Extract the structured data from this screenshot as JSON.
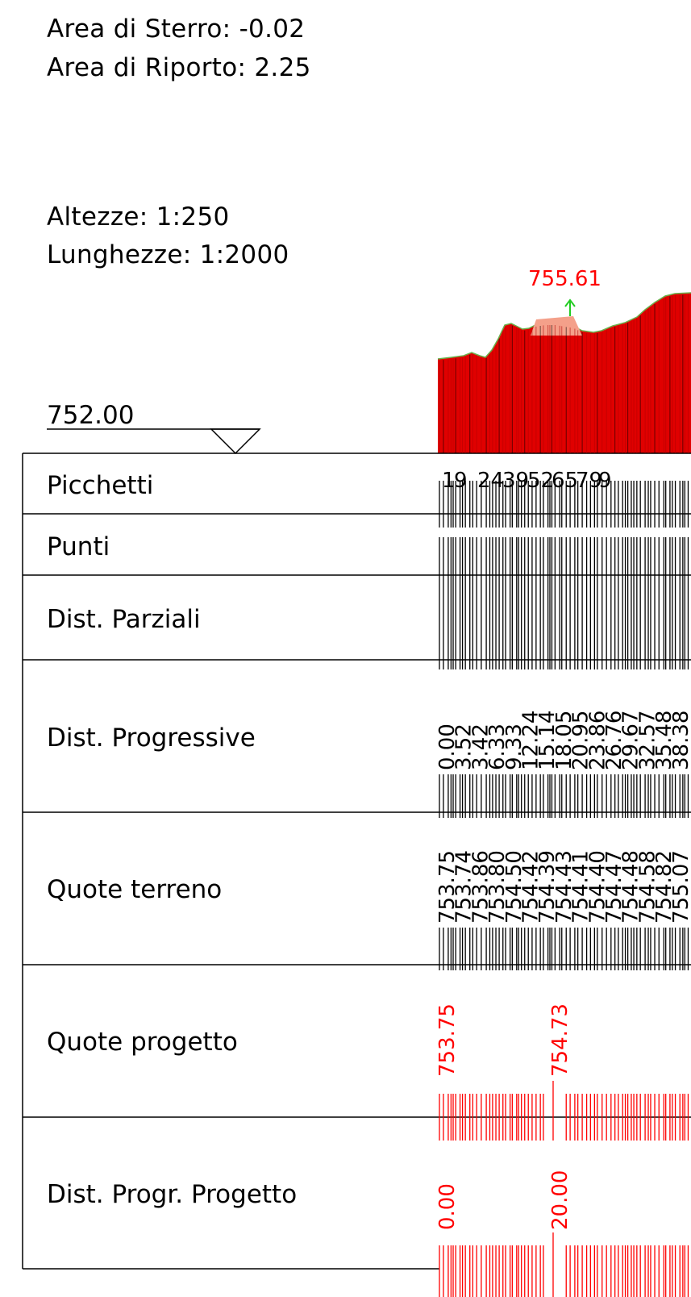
{
  "summary": {
    "area_sterro": "Area di Sterro: -0.02",
    "area_riporto": "Area di Riporto: 2.25"
  },
  "scales": {
    "altezze": "Altezze:  1:250",
    "lunghezze": "Lunghezze: 1:2000"
  },
  "profile": {
    "reference_elevation": "752.00",
    "elevation_label": "755.61",
    "terrain_fill_color": "#e00000",
    "terrain_line_color": "#6ab04c",
    "cut_fill_color": "#f4a08a",
    "arrow_color": "#22cc22"
  },
  "table": {
    "rows": [
      {
        "key": "picchetti",
        "label": "Picchetti"
      },
      {
        "key": "punti",
        "label": "Punti"
      },
      {
        "key": "dist_parziali",
        "label": "Dist. Parziali"
      },
      {
        "key": "dist_progressive",
        "label": "Dist. Progressive"
      },
      {
        "key": "quote_terreno",
        "label": "Quote terreno"
      },
      {
        "key": "quote_progetto",
        "label": "Quote progetto"
      },
      {
        "key": "dist_progr_progetto",
        "label": "Dist. Progr. Progetto"
      }
    ],
    "picchetti_values": [
      "1",
      "9",
      "24",
      "39",
      "52",
      "65",
      "79",
      "9"
    ],
    "dist_progressive_values": [
      "0.00",
      "3.52",
      "3.42",
      "6.33",
      "9.33",
      "12.24",
      "15.14",
      "18.05",
      "20.95",
      "23.86",
      "26.76",
      "29.67",
      "32.57",
      "35.48",
      "38.38"
    ],
    "quote_terreno_values": [
      "753.75",
      "753.74",
      "753.86",
      "753.80",
      "754.50",
      "754.42",
      "754.39",
      "754.43",
      "754.41",
      "754.40",
      "754.47",
      "754.48",
      "754.58",
      "754.82",
      "755.07"
    ],
    "quote_progetto_values": [
      "753.75",
      "754.73"
    ],
    "dist_progr_progetto_values": [
      "0.00",
      "20.00"
    ],
    "design_color": "#ff0000"
  }
}
